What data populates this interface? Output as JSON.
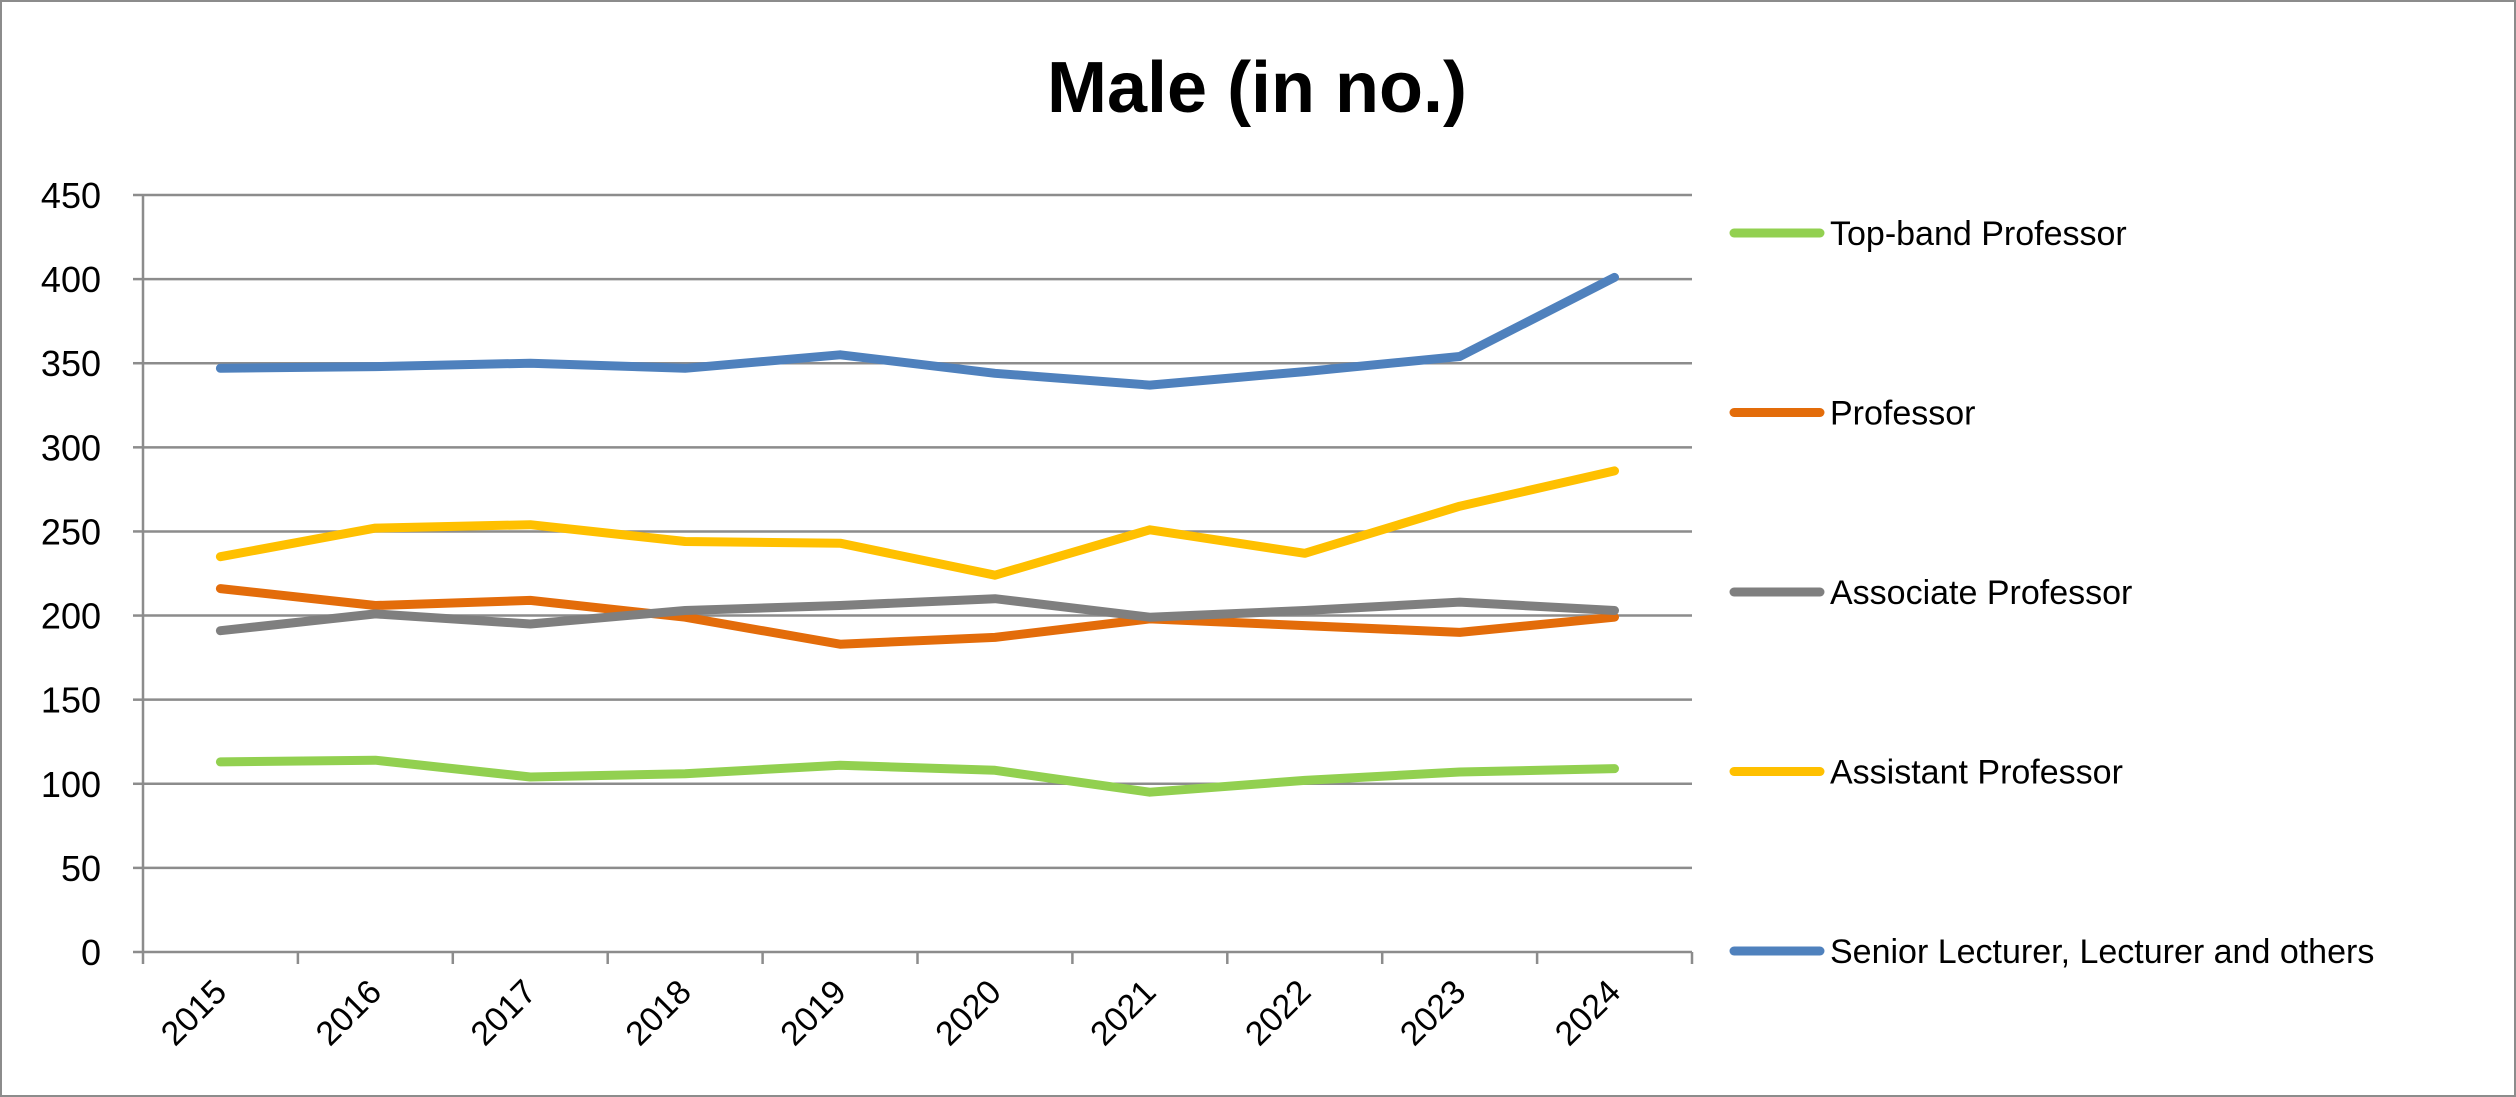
{
  "chart_data": {
    "type": "line",
    "title": "Male (in no.)",
    "xlabel": "",
    "ylabel": "",
    "x": [
      "2015",
      "2016",
      "2017",
      "2018",
      "2019",
      "2020",
      "2021",
      "2022",
      "2023",
      "2024"
    ],
    "ylim": [
      0,
      450
    ],
    "yticks": [
      "0",
      "50",
      "100",
      "150",
      "200",
      "250",
      "300",
      "350",
      "400",
      "450"
    ],
    "grid": true,
    "legend_position": "right",
    "series": [
      {
        "name": "Top-band Professor",
        "color": "#92d050",
        "values": [
          113,
          114,
          104,
          106,
          111,
          108,
          95,
          102,
          107,
          109
        ]
      },
      {
        "name": "Professor",
        "color": "#e36c0a",
        "values": [
          216,
          206,
          209,
          199,
          183,
          187,
          198,
          194,
          190,
          199
        ]
      },
      {
        "name": "Associate Professor",
        "color": "#7f7f7f",
        "values": [
          191,
          201,
          195,
          203,
          206,
          210,
          199,
          203,
          208,
          203
        ]
      },
      {
        "name": "Assistant Professor",
        "color": "#ffc000",
        "values": [
          235,
          252,
          254,
          244,
          243,
          224,
          251,
          237,
          265,
          286
        ]
      },
      {
        "name": "Senior Lecturer, Lecturer and others",
        "color": "#4f81bd",
        "values": [
          347,
          348,
          350,
          347,
          355,
          344,
          337,
          345,
          354,
          401
        ]
      }
    ]
  }
}
